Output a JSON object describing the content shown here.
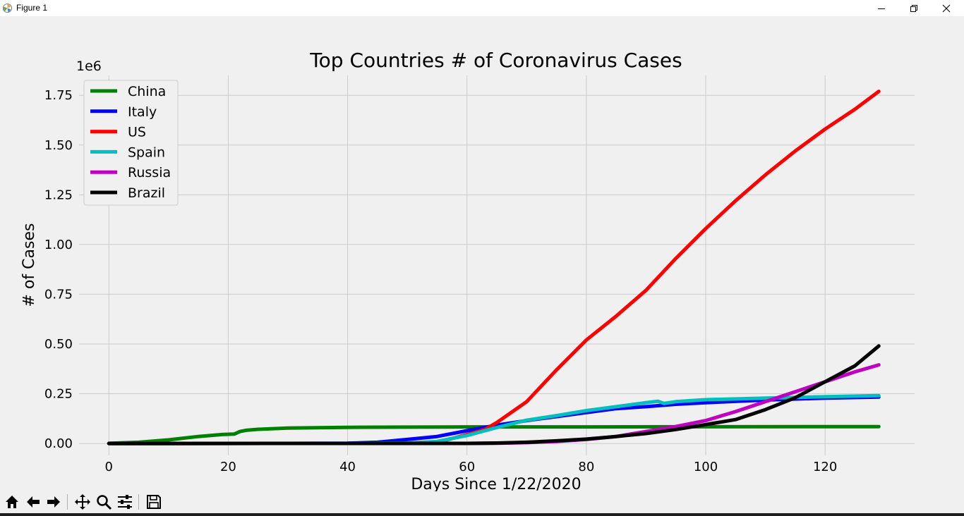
{
  "window": {
    "title": "Figure 1",
    "minimize_icon": "minimize-icon",
    "maximize_icon": "restore-icon",
    "close_icon": "close-icon"
  },
  "toolbar": {
    "buttons": [
      "home-icon",
      "back-arrow-icon",
      "forward-arrow-icon",
      "pan-icon",
      "zoom-icon",
      "configure-subplots-icon",
      "save-icon"
    ]
  },
  "chart_data": {
    "type": "line",
    "title": "Top Countries # of Coronavirus Cases",
    "xlabel": "Days Since 1/22/2020",
    "ylabel": "# of Cases",
    "y_offset_label": "1e6",
    "xlim": [
      -5,
      135
    ],
    "ylim": [
      -0.06,
      1.85
    ],
    "xticks": [
      0,
      20,
      40,
      60,
      80,
      100,
      120
    ],
    "yticks": [
      0.0,
      0.25,
      0.5,
      0.75,
      1.0,
      1.25,
      1.5,
      1.75
    ],
    "ytick_labels": [
      "0.00",
      "0.25",
      "0.50",
      "0.75",
      "1.00",
      "1.25",
      "1.50",
      "1.75"
    ],
    "grid": true,
    "legend_position": "top-left",
    "series": [
      {
        "name": "China",
        "color": "#008000",
        "x": [
          0,
          5,
          10,
          15,
          19,
          21,
          22,
          23,
          25,
          30,
          40,
          50,
          60,
          80,
          100,
          129
        ],
        "y": [
          0.0006,
          0.006,
          0.018,
          0.035,
          0.045,
          0.047,
          0.06,
          0.066,
          0.071,
          0.077,
          0.081,
          0.082,
          0.083,
          0.083,
          0.084,
          0.0845
        ]
      },
      {
        "name": "Italy",
        "color": "#0000ff",
        "x": [
          0,
          30,
          40,
          45,
          50,
          55,
          60,
          65,
          70,
          75,
          80,
          85,
          90,
          95,
          100,
          110,
          120,
          129
        ],
        "y": [
          0,
          0.0003,
          0.001,
          0.006,
          0.02,
          0.035,
          0.064,
          0.092,
          0.115,
          0.135,
          0.155,
          0.175,
          0.185,
          0.197,
          0.205,
          0.218,
          0.228,
          0.233
        ]
      },
      {
        "name": "US",
        "color": "#ff0000",
        "x": [
          0,
          40,
          50,
          55,
          60,
          63,
          65,
          70,
          75,
          80,
          85,
          90,
          95,
          100,
          105,
          110,
          115,
          120,
          125,
          129
        ],
        "y": [
          0,
          0.0002,
          0.0005,
          0.005,
          0.045,
          0.07,
          0.105,
          0.21,
          0.37,
          0.52,
          0.64,
          0.77,
          0.93,
          1.08,
          1.22,
          1.35,
          1.47,
          1.58,
          1.68,
          1.77
        ]
      },
      {
        "name": "Spain",
        "color": "#00bfbf",
        "x": [
          0,
          40,
          50,
          55,
          60,
          65,
          70,
          75,
          80,
          85,
          90,
          92,
          93,
          95,
          100,
          110,
          120,
          129
        ],
        "y": [
          0,
          0.0001,
          0.002,
          0.01,
          0.04,
          0.08,
          0.117,
          0.14,
          0.165,
          0.185,
          0.205,
          0.212,
          0.201,
          0.21,
          0.22,
          0.228,
          0.235,
          0.24
        ]
      },
      {
        "name": "Russia",
        "color": "#bf00bf",
        "x": [
          0,
          60,
          65,
          70,
          75,
          80,
          85,
          90,
          95,
          100,
          105,
          110,
          115,
          120,
          125,
          129
        ],
        "y": [
          0,
          0.0001,
          0.001,
          0.004,
          0.01,
          0.02,
          0.035,
          0.06,
          0.085,
          0.115,
          0.16,
          0.21,
          0.26,
          0.31,
          0.36,
          0.395
        ]
      },
      {
        "name": "Brazil",
        "color": "#000000",
        "x": [
          0,
          60,
          65,
          70,
          75,
          80,
          85,
          90,
          95,
          100,
          105,
          110,
          115,
          120,
          125,
          129
        ],
        "y": [
          0,
          0.0001,
          0.002,
          0.006,
          0.013,
          0.022,
          0.035,
          0.05,
          0.07,
          0.095,
          0.12,
          0.17,
          0.23,
          0.31,
          0.39,
          0.49
        ]
      }
    ]
  }
}
